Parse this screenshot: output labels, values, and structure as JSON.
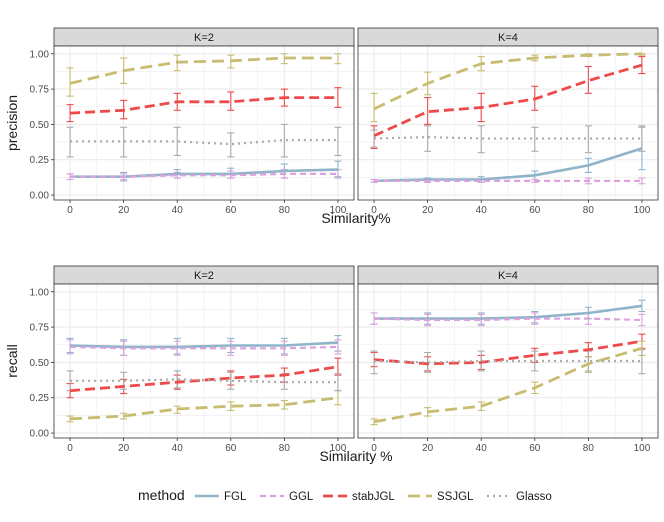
{
  "colors": {
    "FGL": "#8fb3c8",
    "GGL": "#dca2e0",
    "stabJGL": "#ee4a4a",
    "SSJGL": "#c8bc70",
    "Glasso": "#aaaaaa",
    "strip_bg": "#d9d9d9",
    "panel_bg": "#ffffff",
    "grid": "#ebebeb",
    "text": "#1a1a1a",
    "tick_text": "#4d4d4d"
  },
  "legend": {
    "title": "method",
    "entries": [
      "FGL",
      "GGL",
      "stabJGL",
      "SSJGL",
      "Glasso"
    ]
  },
  "chart_data": [
    {
      "type": "line",
      "id": "precision-k2",
      "facet_label": "K=2",
      "xlabel": "Similarity%",
      "ylabel": "precision",
      "x": [
        0,
        20,
        40,
        60,
        80,
        100
      ],
      "x_ticks": [
        "0",
        "20",
        "40",
        "60",
        "80",
        "100"
      ],
      "y_ticks": [
        "0.00",
        "0.25",
        "0.50",
        "0.75",
        "1.00"
      ],
      "xlim": [
        -6,
        106
      ],
      "ylim": [
        -0.035,
        1.055
      ],
      "series": [
        {
          "name": "FGL",
          "values": [
            0.13,
            0.13,
            0.15,
            0.15,
            0.17,
            0.18
          ],
          "lower": [
            0.11,
            0.1,
            0.12,
            0.12,
            0.12,
            0.13
          ],
          "upper": [
            0.15,
            0.16,
            0.18,
            0.19,
            0.22,
            0.24
          ]
        },
        {
          "name": "GGL",
          "values": [
            0.13,
            0.13,
            0.14,
            0.14,
            0.15,
            0.15
          ],
          "lower": [
            0.11,
            0.11,
            0.12,
            0.12,
            0.12,
            0.12
          ],
          "upper": [
            0.15,
            0.15,
            0.16,
            0.17,
            0.18,
            0.18
          ]
        },
        {
          "name": "stabJGL",
          "values": [
            0.58,
            0.6,
            0.66,
            0.66,
            0.69,
            0.69
          ],
          "lower": [
            0.52,
            0.54,
            0.6,
            0.6,
            0.63,
            0.62
          ],
          "upper": [
            0.64,
            0.67,
            0.72,
            0.73,
            0.75,
            0.76
          ]
        },
        {
          "name": "SSJGL",
          "values": [
            0.79,
            0.88,
            0.94,
            0.95,
            0.97,
            0.97
          ],
          "lower": [
            0.7,
            0.79,
            0.88,
            0.9,
            0.93,
            0.93
          ],
          "upper": [
            0.9,
            0.97,
            0.99,
            0.99,
            1.0,
            1.0
          ]
        },
        {
          "name": "Glasso",
          "values": [
            0.38,
            0.38,
            0.38,
            0.36,
            0.39,
            0.39
          ],
          "lower": [
            0.27,
            0.27,
            0.28,
            0.27,
            0.27,
            0.28
          ],
          "upper": [
            0.48,
            0.48,
            0.48,
            0.44,
            0.5,
            0.48
          ]
        }
      ]
    },
    {
      "type": "line",
      "id": "precision-k4",
      "facet_label": "K=4",
      "xlabel": "Similarity%",
      "ylabel": "precision",
      "x": [
        0,
        20,
        40,
        60,
        80,
        100
      ],
      "x_ticks": [
        "0",
        "20",
        "40",
        "60",
        "80",
        "100"
      ],
      "y_ticks": [
        "0.00",
        "0.25",
        "0.50",
        "0.75",
        "1.00"
      ],
      "xlim": [
        -6,
        106
      ],
      "ylim": [
        -0.035,
        1.055
      ],
      "series": [
        {
          "name": "FGL",
          "values": [
            0.1,
            0.11,
            0.11,
            0.14,
            0.21,
            0.33
          ],
          "lower": [
            0.09,
            0.09,
            0.09,
            0.11,
            0.16,
            0.18
          ],
          "upper": [
            0.11,
            0.12,
            0.13,
            0.17,
            0.26,
            0.48
          ]
        },
        {
          "name": "GGL",
          "values": [
            0.1,
            0.1,
            0.1,
            0.1,
            0.1,
            0.1
          ],
          "lower": [
            0.09,
            0.09,
            0.09,
            0.09,
            0.08,
            0.08
          ],
          "upper": [
            0.11,
            0.11,
            0.11,
            0.11,
            0.12,
            0.12
          ]
        },
        {
          "name": "stabJGL",
          "values": [
            0.42,
            0.59,
            0.62,
            0.68,
            0.81,
            0.92
          ],
          "lower": [
            0.33,
            0.5,
            0.52,
            0.6,
            0.72,
            0.86
          ],
          "upper": [
            0.49,
            0.69,
            0.72,
            0.77,
            0.91,
            0.98
          ]
        },
        {
          "name": "SSJGL",
          "values": [
            0.61,
            0.79,
            0.93,
            0.97,
            0.99,
            1.0
          ],
          "lower": [
            0.52,
            0.71,
            0.88,
            0.95,
            0.98,
            0.99
          ],
          "upper": [
            0.72,
            0.87,
            0.98,
            0.99,
            1.0,
            1.0
          ]
        },
        {
          "name": "Glasso",
          "values": [
            0.4,
            0.41,
            0.4,
            0.4,
            0.4,
            0.4
          ],
          "lower": [
            0.34,
            0.31,
            0.3,
            0.31,
            0.3,
            0.31
          ],
          "upper": [
            0.46,
            0.49,
            0.49,
            0.48,
            0.49,
            0.49
          ]
        }
      ]
    },
    {
      "type": "line",
      "id": "recall-k2",
      "facet_label": "K=2",
      "xlabel": "Similarity %",
      "ylabel": "recall",
      "x": [
        0,
        20,
        40,
        60,
        80,
        100
      ],
      "x_ticks": [
        "0",
        "20",
        "40",
        "60",
        "80",
        "100"
      ],
      "y_ticks": [
        "0.00",
        "0.25",
        "0.50",
        "0.75",
        "1.00"
      ],
      "xlim": [
        -6,
        106
      ],
      "ylim": [
        -0.035,
        1.055
      ],
      "series": [
        {
          "name": "FGL",
          "values": [
            0.62,
            0.61,
            0.61,
            0.62,
            0.62,
            0.64
          ],
          "lower": [
            0.57,
            0.55,
            0.56,
            0.57,
            0.56,
            0.58
          ],
          "upper": [
            0.67,
            0.66,
            0.67,
            0.67,
            0.67,
            0.69
          ]
        },
        {
          "name": "GGL",
          "values": [
            0.61,
            0.6,
            0.6,
            0.6,
            0.6,
            0.61
          ],
          "lower": [
            0.56,
            0.55,
            0.55,
            0.55,
            0.55,
            0.56
          ],
          "upper": [
            0.66,
            0.65,
            0.65,
            0.65,
            0.65,
            0.66
          ]
        },
        {
          "name": "stabJGL",
          "values": [
            0.3,
            0.33,
            0.36,
            0.39,
            0.41,
            0.47
          ],
          "lower": [
            0.25,
            0.28,
            0.31,
            0.34,
            0.36,
            0.41
          ],
          "upper": [
            0.35,
            0.38,
            0.41,
            0.44,
            0.46,
            0.53
          ]
        },
        {
          "name": "SSJGL",
          "values": [
            0.1,
            0.12,
            0.17,
            0.19,
            0.2,
            0.25
          ],
          "lower": [
            0.08,
            0.1,
            0.14,
            0.16,
            0.17,
            0.2
          ],
          "upper": [
            0.12,
            0.14,
            0.19,
            0.22,
            0.23,
            0.3
          ]
        },
        {
          "name": "Glasso",
          "values": [
            0.37,
            0.37,
            0.38,
            0.37,
            0.36,
            0.36
          ],
          "lower": [
            0.3,
            0.31,
            0.32,
            0.31,
            0.31,
            0.3
          ],
          "upper": [
            0.44,
            0.43,
            0.44,
            0.43,
            0.42,
            0.42
          ]
        }
      ]
    },
    {
      "type": "line",
      "id": "recall-k4",
      "facet_label": "K=4",
      "xlabel": "Similarity %",
      "ylabel": "recall",
      "x": [
        0,
        20,
        40,
        60,
        80,
        100
      ],
      "x_ticks": [
        "0",
        "20",
        "40",
        "60",
        "80",
        "100"
      ],
      "y_ticks": [
        "0.00",
        "0.25",
        "0.50",
        "0.75",
        "1.00"
      ],
      "xlim": [
        -6,
        106
      ],
      "ylim": [
        -0.035,
        1.055
      ],
      "series": [
        {
          "name": "FGL",
          "values": [
            0.81,
            0.81,
            0.81,
            0.82,
            0.85,
            0.9
          ],
          "lower": [
            0.77,
            0.77,
            0.77,
            0.78,
            0.81,
            0.86
          ],
          "upper": [
            0.85,
            0.85,
            0.85,
            0.86,
            0.89,
            0.94
          ]
        },
        {
          "name": "GGL",
          "values": [
            0.81,
            0.8,
            0.8,
            0.81,
            0.81,
            0.8
          ],
          "lower": [
            0.77,
            0.76,
            0.76,
            0.77,
            0.77,
            0.76
          ],
          "upper": [
            0.85,
            0.84,
            0.84,
            0.85,
            0.85,
            0.84
          ]
        },
        {
          "name": "stabJGL",
          "values": [
            0.52,
            0.49,
            0.5,
            0.55,
            0.59,
            0.65
          ],
          "lower": [
            0.47,
            0.44,
            0.45,
            0.5,
            0.54,
            0.6
          ],
          "upper": [
            0.57,
            0.54,
            0.55,
            0.6,
            0.64,
            0.7
          ]
        },
        {
          "name": "SSJGL",
          "values": [
            0.08,
            0.15,
            0.19,
            0.32,
            0.49,
            0.6
          ],
          "lower": [
            0.06,
            0.12,
            0.16,
            0.28,
            0.44,
            0.55
          ],
          "upper": [
            0.1,
            0.18,
            0.22,
            0.36,
            0.54,
            0.65
          ]
        },
        {
          "name": "Glasso",
          "values": [
            0.51,
            0.5,
            0.51,
            0.51,
            0.51,
            0.51
          ],
          "lower": [
            0.42,
            0.43,
            0.44,
            0.44,
            0.43,
            0.42
          ],
          "upper": [
            0.58,
            0.57,
            0.58,
            0.58,
            0.58,
            0.59
          ]
        }
      ]
    }
  ]
}
